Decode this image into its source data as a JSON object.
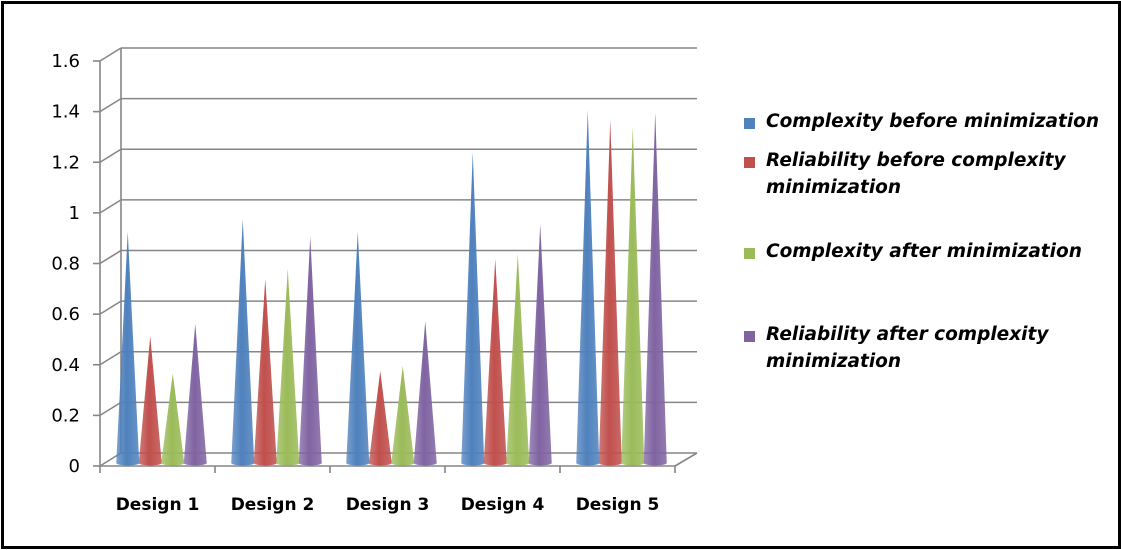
{
  "chart_data": {
    "type": "bar",
    "categories": [
      "Design 1",
      "Design 2",
      "Design 3",
      "Design 4",
      "Design 5"
    ],
    "series": [
      {
        "name": "Complexity before minimization",
        "color": "#4f81bd",
        "values": [
          0.93,
          0.98,
          0.93,
          1.25,
          1.42
        ]
      },
      {
        "name": "Reliability before complexity minimization",
        "color": "#c0504d",
        "values": [
          0.51,
          0.74,
          0.37,
          0.82,
          1.38
        ]
      },
      {
        "name": "Complexity after minimization",
        "color": "#9bbb59",
        "values": [
          0.36,
          0.78,
          0.39,
          0.84,
          1.35
        ]
      },
      {
        "name": "Reliability after complexity minimization",
        "color": "#8064a2",
        "values": [
          0.56,
          0.91,
          0.57,
          0.96,
          1.41
        ]
      }
    ],
    "y_ticks": [
      "0",
      "0.2",
      "0.4",
      "0.6",
      "0.8",
      "1",
      "1.2",
      "1.4",
      "1.6"
    ],
    "ylim": [
      0,
      1.6
    ],
    "grid": true,
    "legend": "right",
    "title": "",
    "xlabel": "",
    "ylabel": ""
  }
}
